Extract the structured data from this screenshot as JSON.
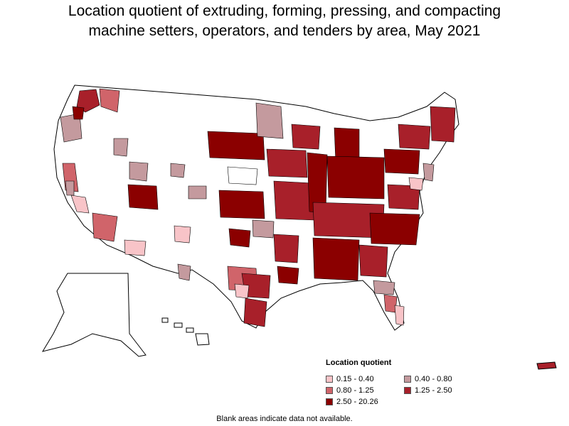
{
  "title": {
    "line1": "Location quotient of extruding, forming, pressing, and compacting",
    "line2": "machine setters, operators, and tenders by area, May 2021"
  },
  "legend": {
    "title": "Location quotient",
    "items": [
      {
        "label": "0.15 - 0.40",
        "color": "#f8c4c8"
      },
      {
        "label": "0.40 - 0.80",
        "color": "#c49a9e"
      },
      {
        "label": "0.80 - 1.25",
        "color": "#d0646a"
      },
      {
        "label": "1.25 - 2.50",
        "color": "#a8202a"
      },
      {
        "label": "2.50 - 20.26",
        "color": "#8b0000"
      }
    ]
  },
  "footnote": "Blank areas indicate data not available.",
  "colors": {
    "blank": "#ffffff",
    "border": "#000000",
    "very_low": "#f8c4c8",
    "low": "#c49a9e",
    "medium": "#d0646a",
    "high": "#a8202a",
    "very_high": "#8b0000"
  },
  "map_regions": [
    "Contiguous United States",
    "Alaska",
    "Hawaii",
    "Puerto Rico"
  ]
}
